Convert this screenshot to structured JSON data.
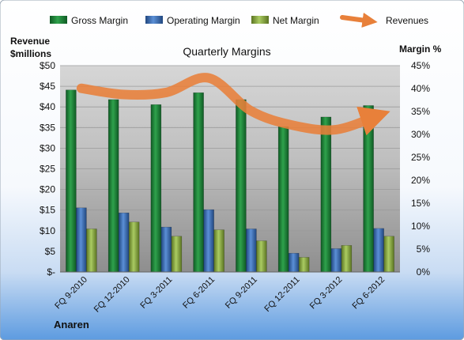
{
  "chart_data": {
    "type": "bar",
    "title": "Quarterly Margins",
    "left_axis_label_line1": "Revenue",
    "left_axis_label_line2": "$millions",
    "right_axis_label": "Margin %",
    "footer_label": "Anaren",
    "categories": [
      "FQ 9-2010",
      "FQ 12-2010",
      "FQ 3-2011",
      "FQ 6-2011",
      "FQ 9-2011",
      "FQ 12-2011",
      "FQ 3-2012",
      "FQ 6-2012"
    ],
    "left_axis": {
      "min": 0,
      "max": 50,
      "step": 5,
      "tick_labels": [
        "$-",
        "$5",
        "$10",
        "$15",
        "$20",
        "$25",
        "$30",
        "$35",
        "$40",
        "$45",
        "$50"
      ]
    },
    "right_axis": {
      "min": 0,
      "max": 45,
      "step": 5,
      "tick_labels": [
        "0%",
        "5%",
        "10%",
        "15%",
        "20%",
        "25%",
        "30%",
        "35%",
        "40%",
        "45%"
      ]
    },
    "series": [
      {
        "name": "Gross Margin",
        "axis": "right",
        "color": "#1f8a3a",
        "values": [
          39.7,
          37.6,
          36.5,
          39.1,
          37.6,
          31.7,
          33.8,
          36.3
        ]
      },
      {
        "name": "Operating Margin",
        "axis": "right",
        "color": "#3a6db5",
        "values": [
          14.0,
          12.9,
          9.8,
          13.6,
          9.4,
          4.1,
          5.1,
          9.5
        ]
      },
      {
        "name": "Net Margin",
        "axis": "right",
        "color": "#8fb047",
        "values": [
          9.4,
          10.9,
          7.8,
          9.2,
          6.8,
          3.2,
          5.8,
          7.8
        ]
      },
      {
        "name": "Revenues",
        "axis": "left",
        "color": "#e8803a",
        "type": "line",
        "values": [
          44.5,
          43.0,
          43.5,
          47.0,
          39.0,
          35.5,
          34.5,
          38.0
        ]
      }
    ],
    "legend_position": "top",
    "grid": true
  }
}
